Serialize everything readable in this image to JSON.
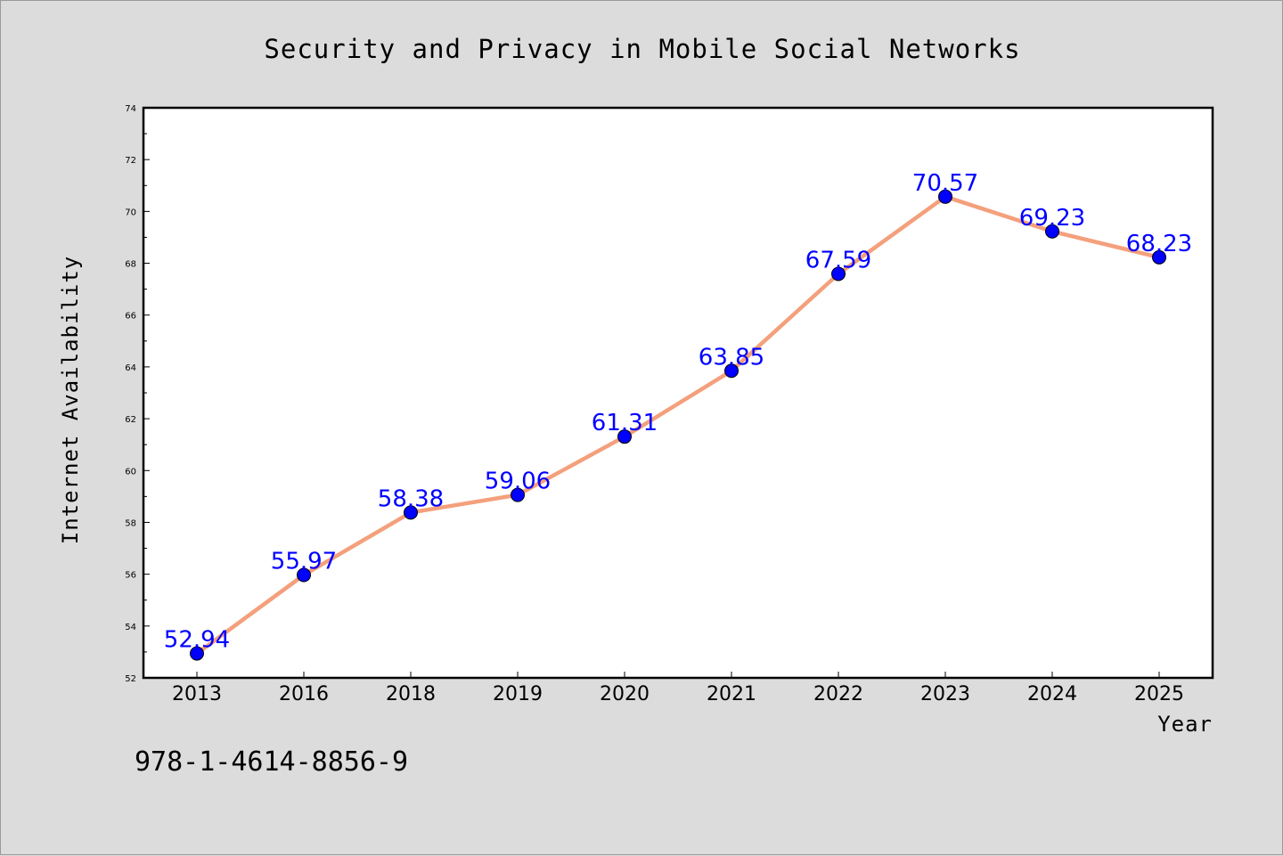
{
  "chart_data": {
    "type": "line",
    "title": "Security and Privacy in Mobile Social Networks",
    "xlabel": "Year",
    "ylabel": "Internet Availability",
    "categories": [
      "2013",
      "2016",
      "2018",
      "2019",
      "2020",
      "2021",
      "2022",
      "2023",
      "2024",
      "2025"
    ],
    "series": [
      {
        "values": [
          52.94,
          55.97,
          58.38,
          59.06,
          61.31,
          63.85,
          67.59,
          70.57,
          69.23,
          68.23
        ],
        "labels": [
          "52.94",
          "55.97",
          "58.38",
          "59.06",
          "61.31",
          "63.85",
          "67.59",
          "70.57",
          "69.23",
          "68.23"
        ],
        "line_color": "#f4a07c",
        "marker_color": "#0000ff",
        "label_color": "#0000ff"
      }
    ],
    "ylim": [
      52,
      74
    ],
    "yticks": [
      "52",
      "54",
      "56",
      "58",
      "60",
      "62",
      "64",
      "66",
      "68",
      "70",
      "72",
      "74"
    ],
    "grid": false,
    "legend": "none"
  },
  "footer": {
    "isbn": "978-1-4614-8856-9"
  }
}
